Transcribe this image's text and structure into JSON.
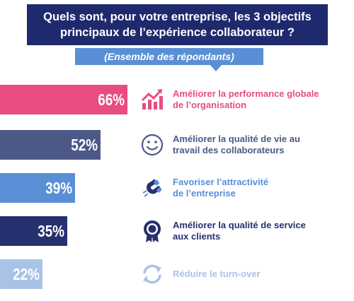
{
  "title_line1": "Quels sont, pour votre entreprise, les 3 objectifs",
  "title_line2": "principaux de l’expérience collaborateur ?",
  "subtitle": "(Ensemble des répondants)",
  "chart_data": {
    "type": "bar",
    "orientation": "horizontal",
    "categories": [
      "Améliorer la performance globale de l’organisation",
      "Améliorer la qualité de vie au travail des collaborateurs",
      "Favoriser l’attractivité de l’entreprise",
      "Améliorer la qualité de service aux clients",
      "Réduire le turn-over"
    ],
    "values": [
      66,
      52,
      39,
      35,
      22
    ],
    "value_labels": [
      "66%",
      "52%",
      "39%",
      "35%",
      "22%"
    ],
    "colors": [
      "#e84c82",
      "#4c5987",
      "#5a8fd6",
      "#26306f",
      "#a8c3e6"
    ],
    "title": "Quels sont, pour votre entreprise, les 3 objectifs principaux de l’expérience collaborateur ?",
    "subtitle": "(Ensemble des répondants)",
    "xlabel": "",
    "ylabel": "",
    "grid": false
  },
  "rows": [
    {
      "pct": "66%",
      "line1": "Améliorer la performance globale",
      "line2": "de l’organisation",
      "icon": "chart-up-icon",
      "color": "#e84c82"
    },
    {
      "pct": "52%",
      "line1": "Améliorer la qualité de vie au",
      "line2": "travail des collaborateurs",
      "icon": "smiley-icon",
      "color": "#4c5987"
    },
    {
      "pct": "39%",
      "line1": "Favoriser l’attractivité",
      "line2": "de l’entreprise",
      "icon": "magnet-icon",
      "color": "#5a8fd6"
    },
    {
      "pct": "35%",
      "line1": "Améliorer la qualité de service",
      "line2": "aux clients",
      "icon": "award-badge-icon",
      "color": "#26306f"
    },
    {
      "pct": "22%",
      "line1": "Réduire le turn-over",
      "line2": "",
      "icon": "refresh-icon",
      "color": "#a8c3e6"
    }
  ]
}
